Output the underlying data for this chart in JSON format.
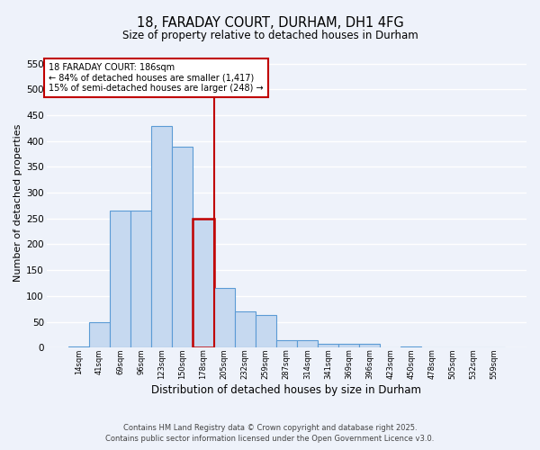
{
  "title1": "18, FARADAY COURT, DURHAM, DH1 4FG",
  "title2": "Size of property relative to detached houses in Durham",
  "xlabel": "Distribution of detached houses by size in Durham",
  "ylabel": "Number of detached properties",
  "categories": [
    "14sqm",
    "41sqm",
    "69sqm",
    "96sqm",
    "123sqm",
    "150sqm",
    "178sqm",
    "205sqm",
    "232sqm",
    "259sqm",
    "287sqm",
    "314sqm",
    "341sqm",
    "369sqm",
    "396sqm",
    "423sqm",
    "450sqm",
    "478sqm",
    "505sqm",
    "532sqm",
    "559sqm"
  ],
  "values": [
    2,
    50,
    265,
    265,
    430,
    390,
    250,
    115,
    70,
    63,
    15,
    15,
    8,
    8,
    8,
    0,
    2,
    0,
    0,
    0,
    0
  ],
  "bar_color": "#c6d9f0",
  "bar_edge_color": "#5b9bd5",
  "highlight_index": 6,
  "highlight_color": "#c00000",
  "annotation_text": "18 FARADAY COURT: 186sqm\n← 84% of detached houses are smaller (1,417)\n15% of semi-detached houses are larger (248) →",
  "annotation_box_color": "#ffffff",
  "annotation_box_edge_color": "#c00000",
  "ylim": [
    0,
    560
  ],
  "yticks": [
    0,
    50,
    100,
    150,
    200,
    250,
    300,
    350,
    400,
    450,
    500,
    550
  ],
  "footer1": "Contains HM Land Registry data © Crown copyright and database right 2025.",
  "footer2": "Contains public sector information licensed under the Open Government Licence v3.0.",
  "background_color": "#eef2fa",
  "grid_color": "#ffffff"
}
